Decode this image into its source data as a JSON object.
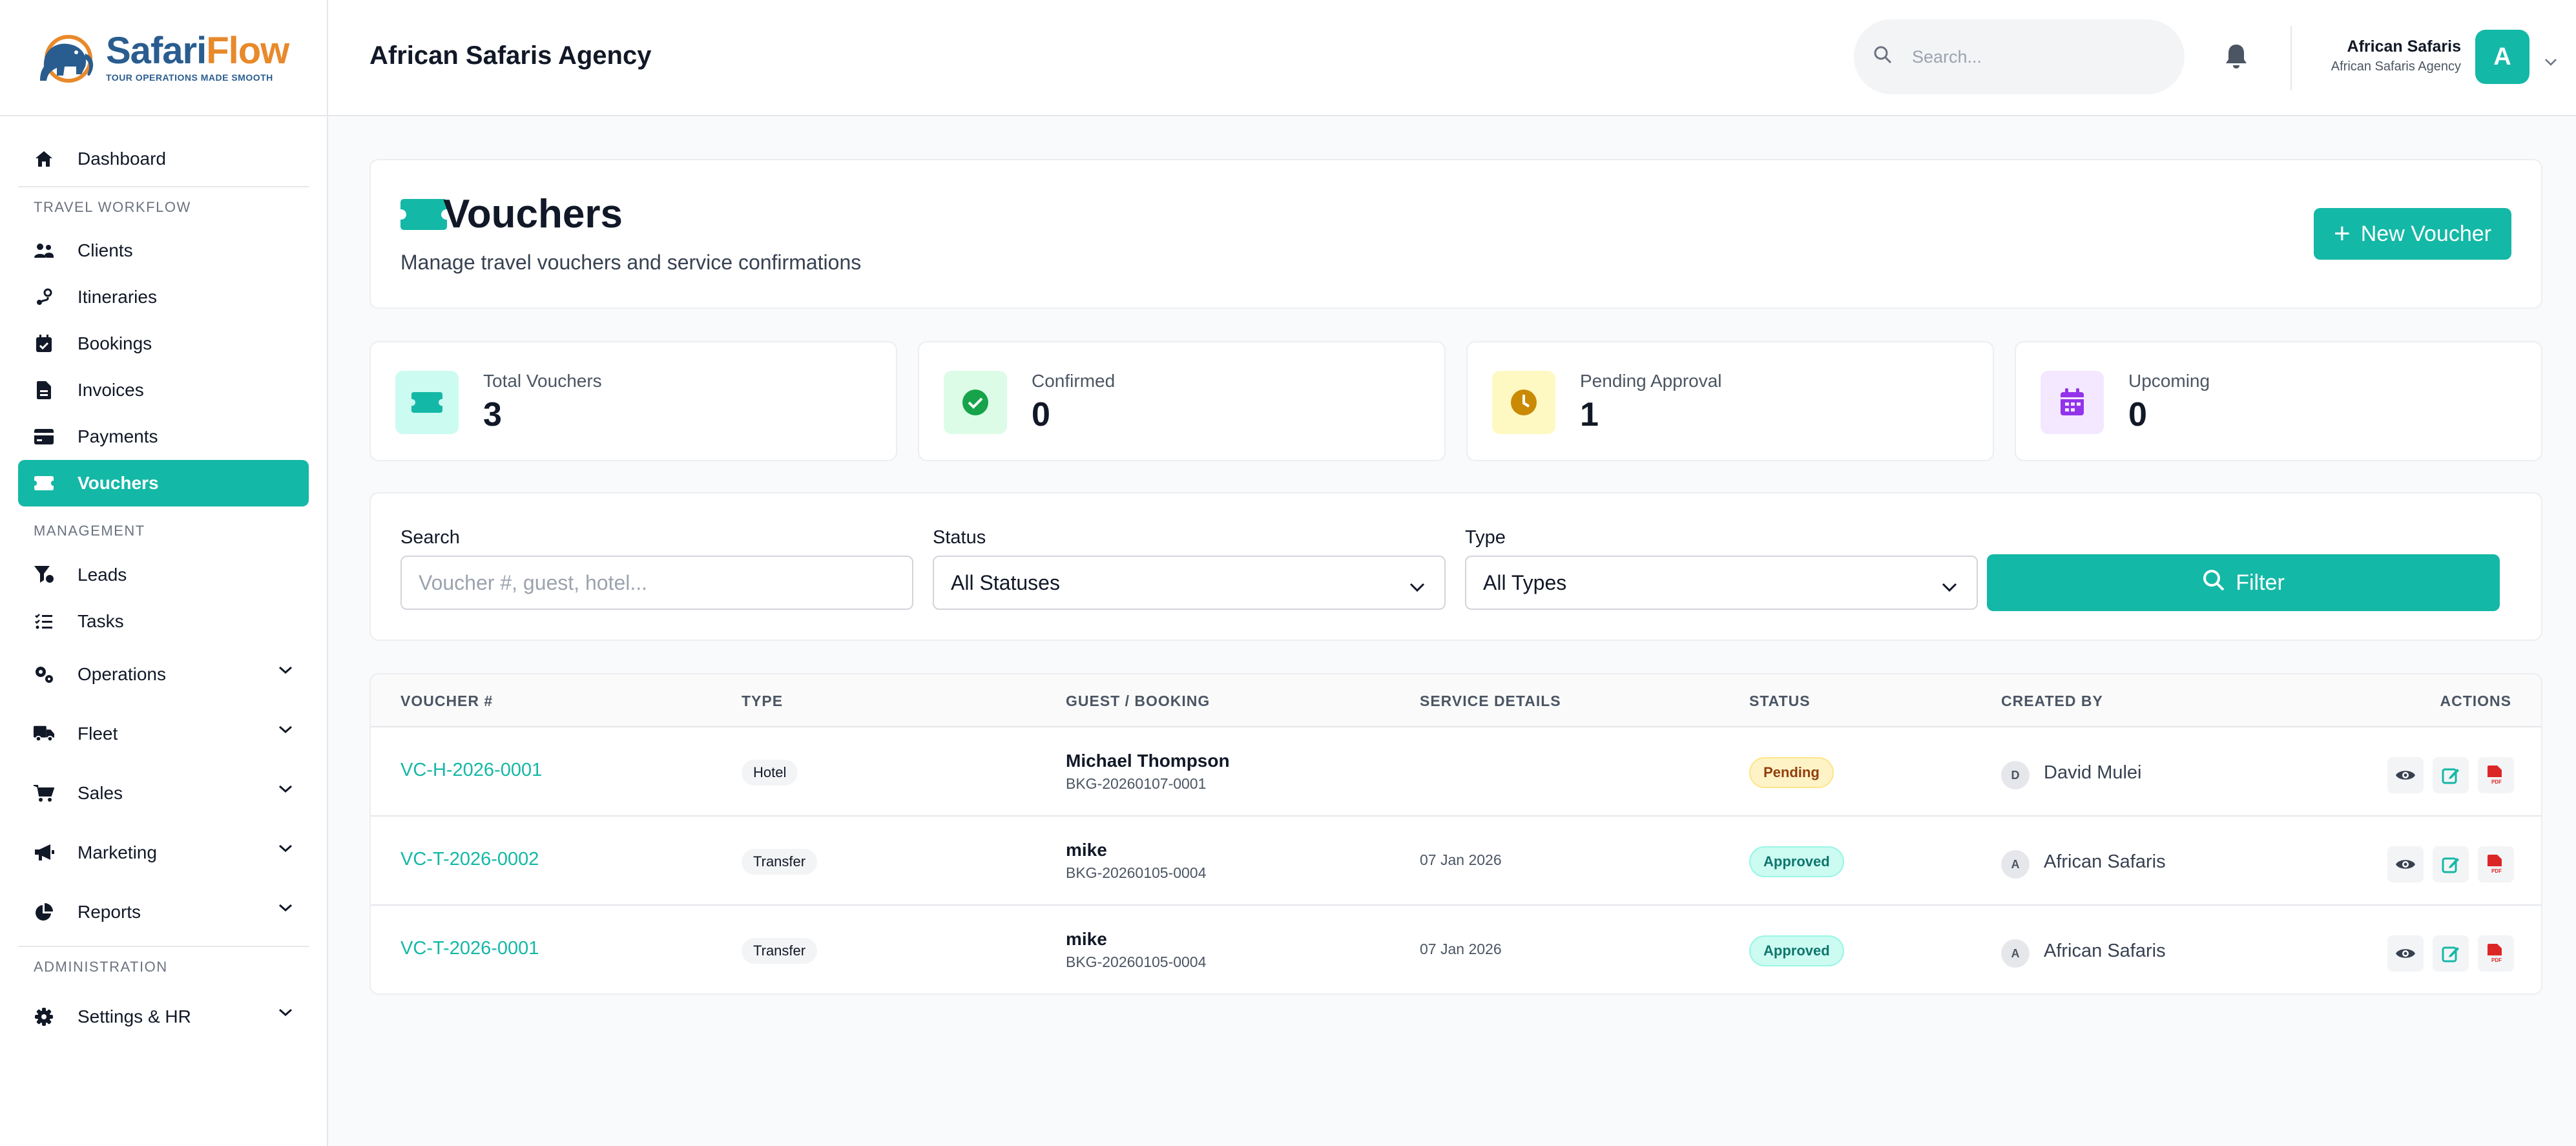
{
  "brand": {
    "name_part1": "Safari",
    "name_part2": "Flow",
    "tagline": "TOUR OPERATIONS MADE SMOOTH"
  },
  "header": {
    "agency_title": "African Safaris Agency",
    "search_placeholder": "Search...",
    "user_name": "African Safaris",
    "user_org": "African Safaris Agency",
    "avatar_initial": "A"
  },
  "sidebar": {
    "dashboard": "Dashboard",
    "section_travel": "TRAVEL WORKFLOW",
    "clients": "Clients",
    "itineraries": "Itineraries",
    "bookings": "Bookings",
    "invoices": "Invoices",
    "payments": "Payments",
    "vouchers": "Vouchers",
    "section_management": "MANAGEMENT",
    "leads": "Leads",
    "tasks": "Tasks",
    "operations": "Operations",
    "fleet": "Fleet",
    "sales": "Sales",
    "marketing": "Marketing",
    "reports": "Reports",
    "section_admin": "ADMINISTRATION",
    "settings": "Settings & HR"
  },
  "page": {
    "title": "Vouchers",
    "subtitle": "Manage travel vouchers and service confirmations",
    "new_button": "New Voucher"
  },
  "stats": {
    "total_label": "Total Vouchers",
    "total_value": "3",
    "confirmed_label": "Confirmed",
    "confirmed_value": "0",
    "pending_label": "Pending Approval",
    "pending_value": "1",
    "upcoming_label": "Upcoming",
    "upcoming_value": "0"
  },
  "filters": {
    "search_label": "Search",
    "search_placeholder": "Voucher #, guest, hotel...",
    "status_label": "Status",
    "status_value": "All Statuses",
    "type_label": "Type",
    "type_value": "All Types",
    "filter_button": "Filter"
  },
  "table": {
    "headers": {
      "voucher": "VOUCHER #",
      "type": "TYPE",
      "guest": "GUEST / BOOKING",
      "service": "SERVICE DETAILS",
      "status": "STATUS",
      "created_by": "CREATED BY",
      "actions": "ACTIONS"
    },
    "rows": [
      {
        "voucher": "VC-H-2026-0001",
        "type": "Hotel",
        "guest": "Michael Thompson",
        "booking": "BKG-20260107-0001",
        "service": "",
        "status": "Pending",
        "creator_initial": "D",
        "creator": "David Mulei"
      },
      {
        "voucher": "VC-T-2026-0002",
        "type": "Transfer",
        "guest": "mike",
        "booking": "BKG-20260105-0004",
        "service": "07 Jan 2026",
        "status": "Approved",
        "creator_initial": "A",
        "creator": "African Safaris"
      },
      {
        "voucher": "VC-T-2026-0001",
        "type": "Transfer",
        "guest": "mike",
        "booking": "BKG-20260105-0004",
        "service": "07 Jan 2026",
        "status": "Approved",
        "creator_initial": "A",
        "creator": "African Safaris"
      }
    ]
  },
  "colors": {
    "accent": "#14b8a6",
    "pending_bg": "#fef3c7",
    "approved_bg": "#ccfbf1",
    "pdf_red": "#dc2626"
  }
}
